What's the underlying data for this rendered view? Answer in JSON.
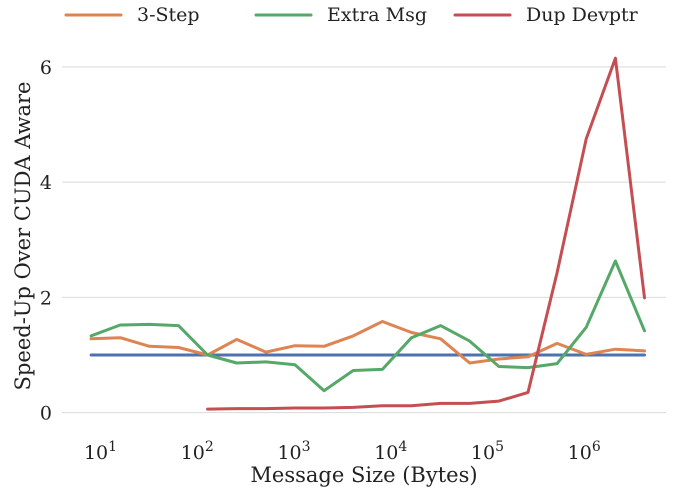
{
  "chart_data": {
    "type": "line",
    "title": "",
    "xlabel": "Message Size (Bytes)",
    "ylabel": "Speed-Up Over CUDA Aware",
    "xscale": "log",
    "xlim": [
      4,
      7000000
    ],
    "ylim": [
      -0.25,
      6.5
    ],
    "grid": "horizontal",
    "legend_position": "top",
    "xticks": [
      {
        "value": 10,
        "base": "10",
        "exp": "1"
      },
      {
        "value": 100,
        "base": "10",
        "exp": "2"
      },
      {
        "value": 1000,
        "base": "10",
        "exp": "3"
      },
      {
        "value": 10000,
        "base": "10",
        "exp": "4"
      },
      {
        "value": 100000,
        "base": "10",
        "exp": "5"
      },
      {
        "value": 1000000,
        "base": "10",
        "exp": "6"
      }
    ],
    "yticks": [
      {
        "value": 0,
        "label": "0"
      },
      {
        "value": 2,
        "label": "2"
      },
      {
        "value": 4,
        "label": "4"
      },
      {
        "value": 6,
        "label": "6"
      }
    ],
    "series": [
      {
        "name": "",
        "color": "#4c72b0",
        "in_legend": false,
        "x": [
          8,
          4194304
        ],
        "y": [
          1.0,
          1.0
        ]
      },
      {
        "name": "3-Step",
        "color": "#dd8452",
        "in_legend": true,
        "x": [
          8,
          16,
          32,
          64,
          128,
          256,
          512,
          1024,
          2048,
          4096,
          8192,
          16384,
          32768,
          65536,
          131072,
          262144,
          524288,
          1048576,
          2097152,
          4194304
        ],
        "y": [
          1.28,
          1.3,
          1.15,
          1.13,
          1.0,
          1.27,
          1.05,
          1.16,
          1.15,
          1.33,
          1.58,
          1.39,
          1.28,
          0.86,
          0.93,
          0.97,
          1.2,
          1.01,
          1.1,
          1.07
        ]
      },
      {
        "name": "Extra Msg",
        "color": "#55a868",
        "in_legend": true,
        "x": [
          8,
          16,
          32,
          64,
          128,
          256,
          512,
          1024,
          2048,
          4096,
          8192,
          16384,
          32768,
          65536,
          131072,
          262144,
          524288,
          1048576,
          2097152,
          4194304
        ],
        "y": [
          1.33,
          1.52,
          1.53,
          1.51,
          1.0,
          0.86,
          0.88,
          0.83,
          0.38,
          0.73,
          0.75,
          1.3,
          1.51,
          1.24,
          0.8,
          0.78,
          0.85,
          1.48,
          2.63,
          1.42
        ]
      },
      {
        "name": "Dup Devptr",
        "color": "#c44e52",
        "in_legend": true,
        "x": [
          128,
          256,
          512,
          1024,
          2048,
          4096,
          8192,
          16384,
          32768,
          65536,
          131072,
          262144,
          524288,
          1048576,
          2097152,
          4194304
        ],
        "y": [
          0.06,
          0.07,
          0.07,
          0.08,
          0.08,
          0.09,
          0.12,
          0.12,
          0.16,
          0.16,
          0.2,
          0.35,
          2.43,
          4.75,
          6.15,
          1.99
        ]
      }
    ]
  }
}
